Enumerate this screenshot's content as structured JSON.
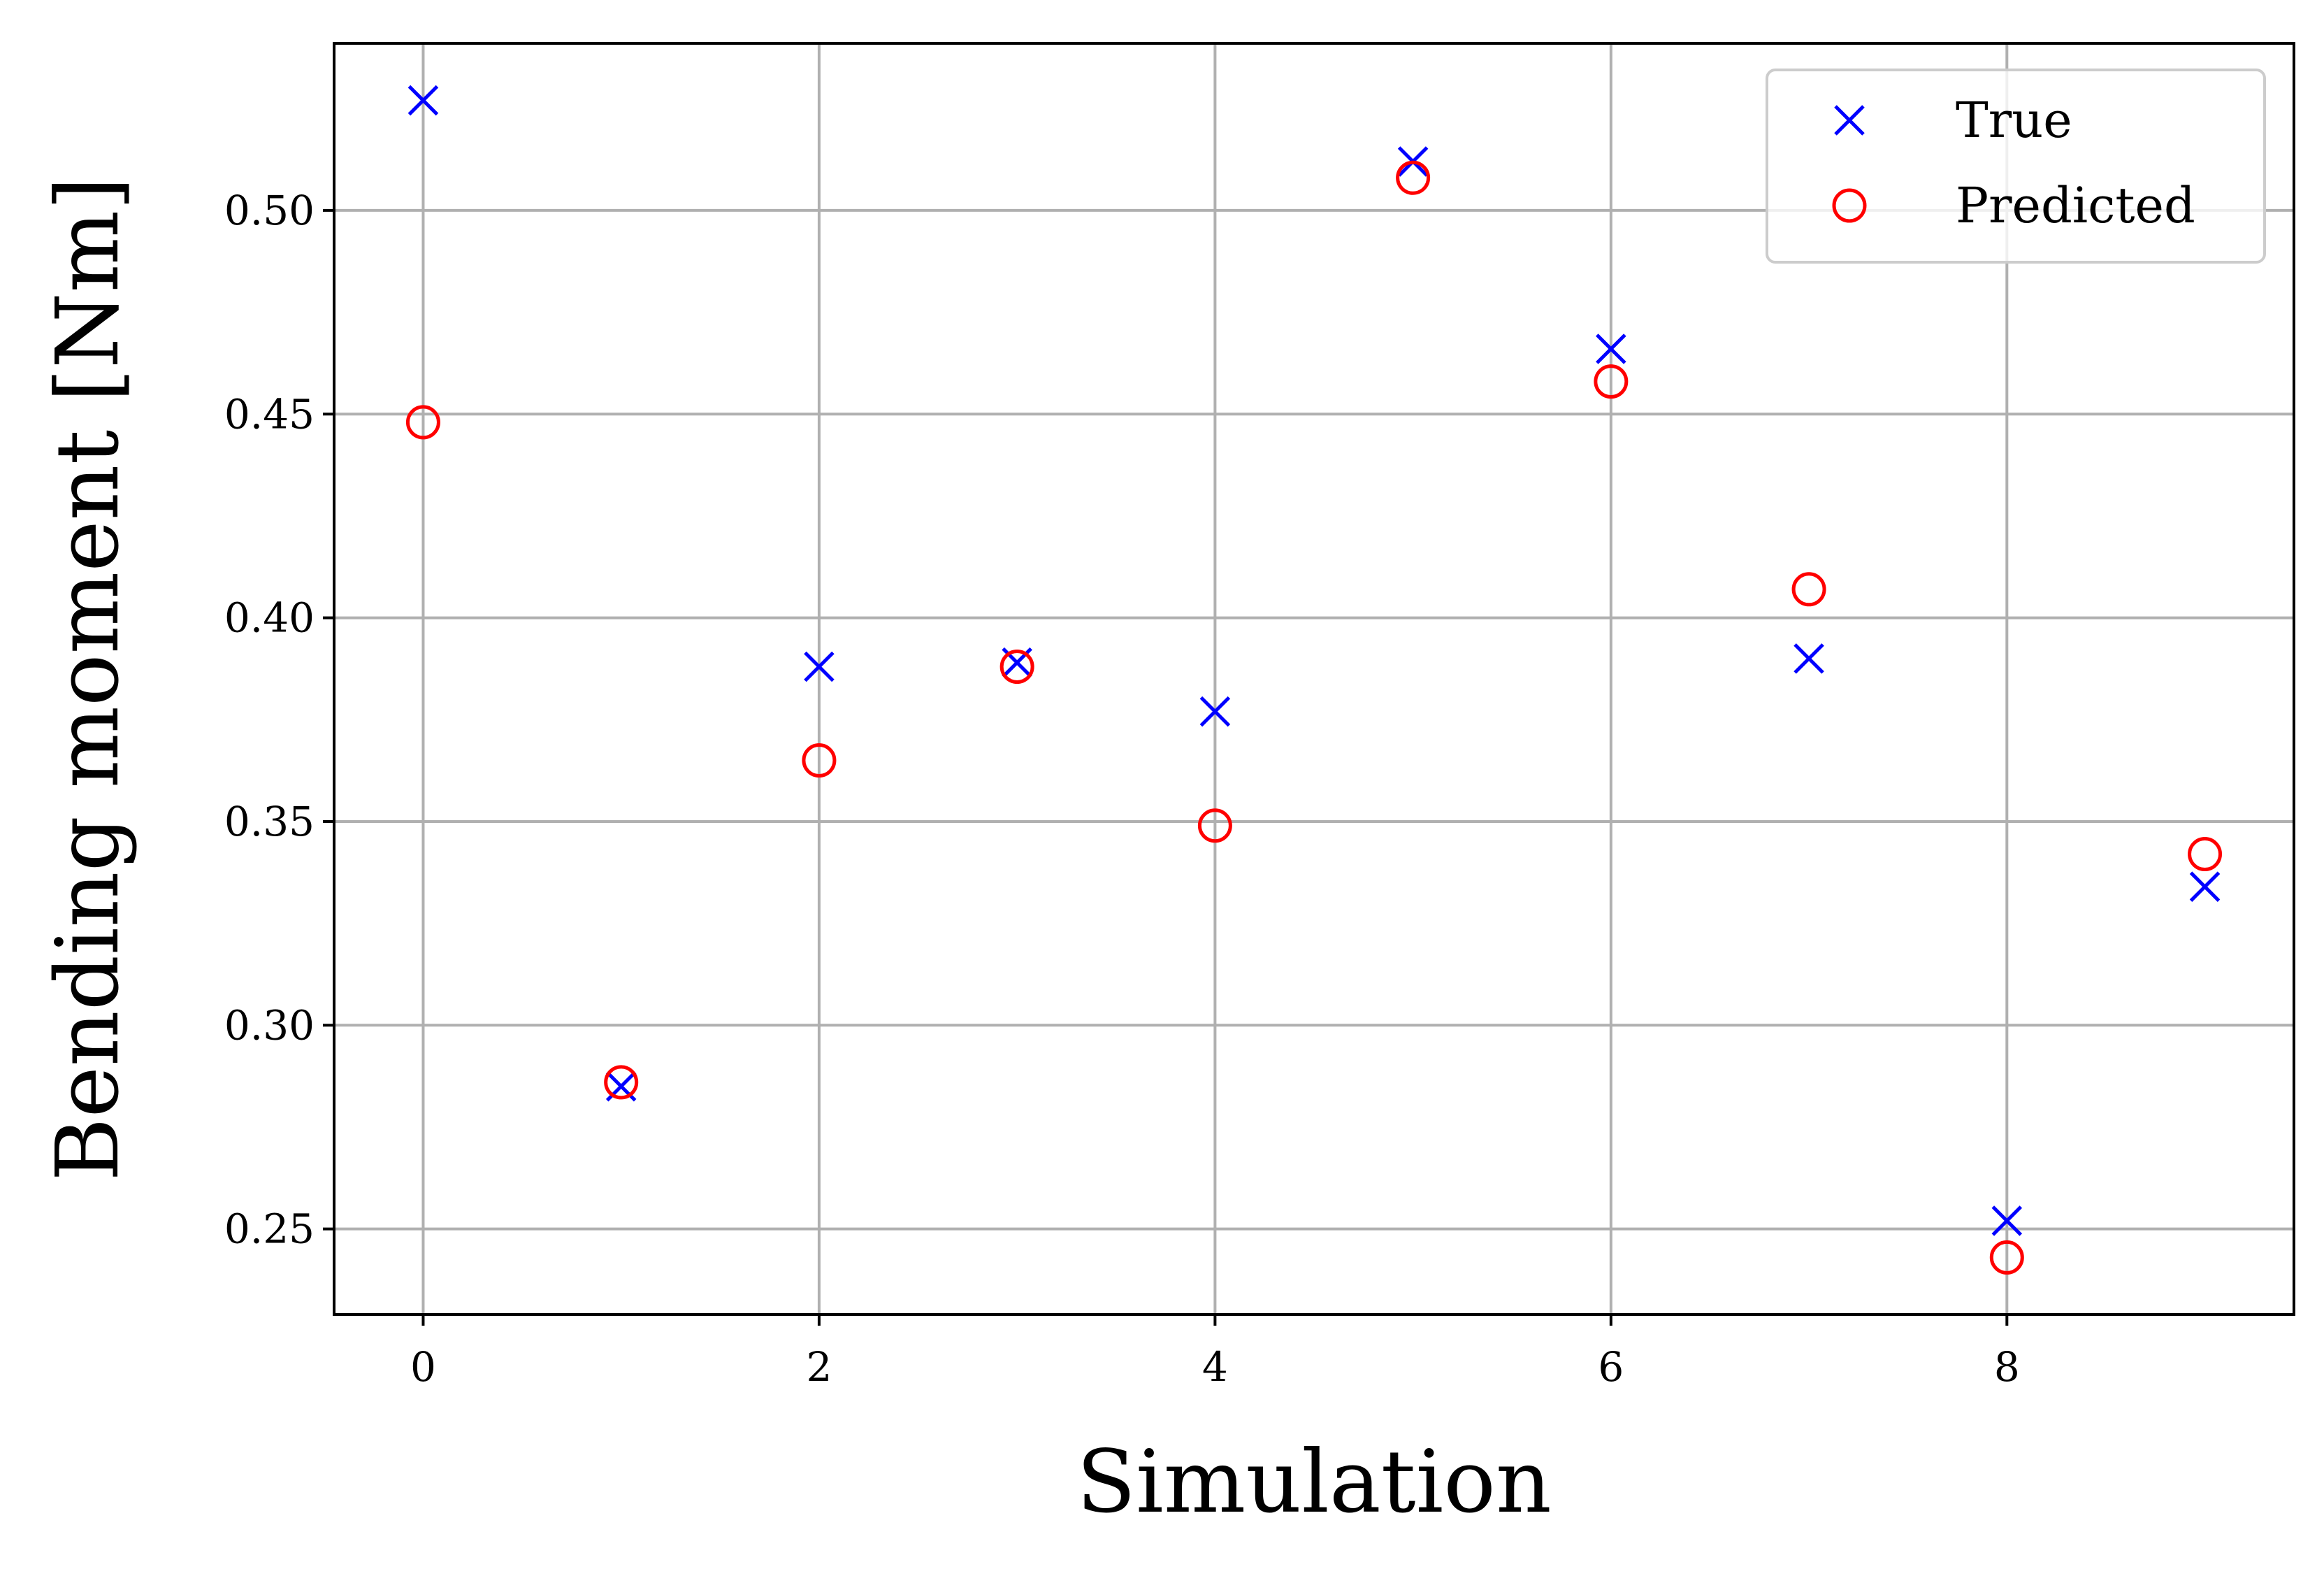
{
  "chart_data": {
    "type": "scatter",
    "title": "",
    "xlabel": "Simulation",
    "ylabel": "Bending moment [Nm]",
    "xlim": [
      -0.45,
      9.45
    ],
    "ylim": [
      0.229,
      0.541
    ],
    "xticks": [
      0,
      2,
      4,
      6,
      8
    ],
    "xtick_labels": [
      "0",
      "2",
      "4",
      "6",
      "8"
    ],
    "yticks": [
      0.25,
      0.3,
      0.35,
      0.4,
      0.45,
      0.5
    ],
    "ytick_labels": [
      "0.25",
      "0.30",
      "0.35",
      "0.40",
      "0.45",
      "0.50"
    ],
    "grid": true,
    "legend_position": "top-right",
    "x": [
      0,
      1,
      2,
      3,
      4,
      5,
      6,
      7,
      8,
      9
    ],
    "series": [
      {
        "name": "True",
        "marker": "x",
        "color": "#0000ff",
        "values": [
          0.527,
          0.285,
          0.388,
          0.389,
          0.377,
          0.512,
          0.466,
          0.39,
          0.252,
          0.334
        ]
      },
      {
        "name": "Predicted",
        "marker": "o",
        "color": "#ff0000",
        "values": [
          0.448,
          0.286,
          0.365,
          0.388,
          0.349,
          0.508,
          0.458,
          0.407,
          0.243,
          0.342
        ]
      }
    ]
  }
}
